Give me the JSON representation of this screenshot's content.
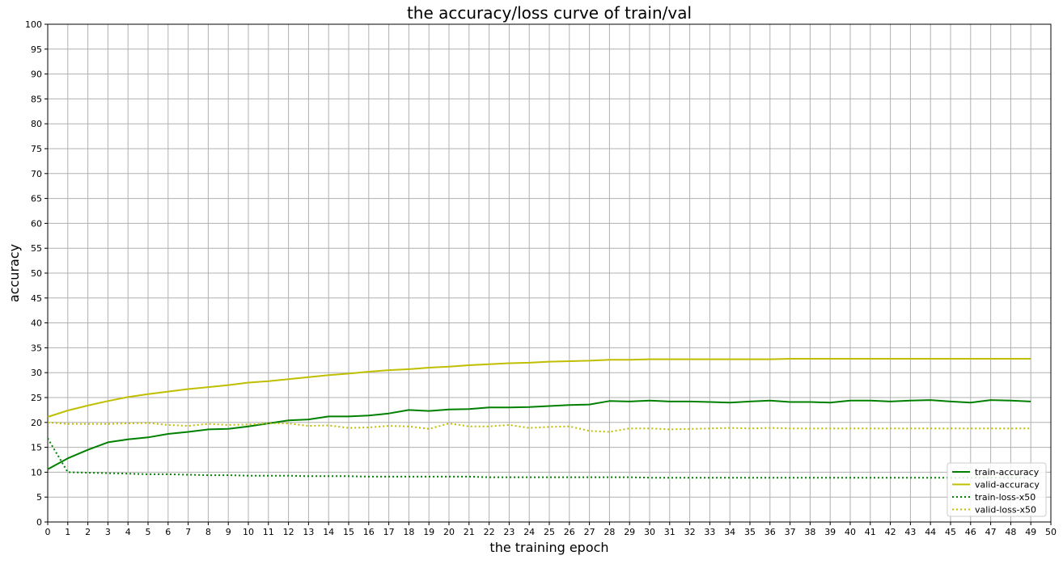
{
  "chart_data": {
    "type": "line",
    "title": "the accuracy/loss curve of train/val",
    "xlabel": "the training epoch",
    "ylabel": "accuracy",
    "xlim": [
      0,
      50
    ],
    "ylim": [
      0,
      100
    ],
    "xticks": [
      0,
      1,
      2,
      3,
      4,
      5,
      6,
      7,
      8,
      9,
      10,
      11,
      12,
      13,
      14,
      15,
      16,
      17,
      18,
      19,
      20,
      21,
      22,
      23,
      24,
      25,
      26,
      27,
      28,
      29,
      30,
      31,
      32,
      33,
      34,
      35,
      36,
      37,
      38,
      39,
      40,
      41,
      42,
      43,
      44,
      45,
      46,
      47,
      48,
      49,
      50
    ],
    "yticks": [
      0,
      5,
      10,
      15,
      20,
      25,
      30,
      35,
      40,
      45,
      50,
      55,
      60,
      65,
      70,
      75,
      80,
      85,
      90,
      95,
      100
    ],
    "grid": true,
    "legend_position": "bottom-right",
    "x": [
      0,
      1,
      2,
      3,
      4,
      5,
      6,
      7,
      8,
      9,
      10,
      11,
      12,
      13,
      14,
      15,
      16,
      17,
      18,
      19,
      20,
      21,
      22,
      23,
      24,
      25,
      26,
      27,
      28,
      29,
      30,
      31,
      32,
      33,
      34,
      35,
      36,
      37,
      38,
      39,
      40,
      41,
      42,
      43,
      44,
      45,
      46,
      47,
      48,
      49
    ],
    "series": [
      {
        "name": "train-accuracy",
        "color": "#008000",
        "style": "solid",
        "values": [
          10.6,
          12.8,
          14.5,
          16.0,
          16.6,
          17.0,
          17.7,
          18.1,
          18.6,
          18.7,
          19.2,
          19.8,
          20.4,
          20.6,
          21.2,
          21.2,
          21.4,
          21.8,
          22.5,
          22.3,
          22.6,
          22.7,
          23.0,
          23.0,
          23.1,
          23.3,
          23.5,
          23.6,
          24.3,
          24.2,
          24.4,
          24.2,
          24.2,
          24.1,
          24.0,
          24.2,
          24.4,
          24.1,
          24.1,
          24.0,
          24.4,
          24.4,
          24.2,
          24.4,
          24.5,
          24.2,
          24.0,
          24.5,
          24.4,
          24.2
        ]
      },
      {
        "name": "valid-accuracy",
        "color": "#bfbf00",
        "style": "solid",
        "values": [
          21.1,
          22.4,
          23.4,
          24.3,
          25.1,
          25.7,
          26.2,
          26.7,
          27.1,
          27.5,
          28.0,
          28.3,
          28.7,
          29.1,
          29.5,
          29.8,
          30.2,
          30.5,
          30.7,
          31.0,
          31.2,
          31.5,
          31.7,
          31.9,
          32.0,
          32.2,
          32.3,
          32.4,
          32.6,
          32.6,
          32.7,
          32.7,
          32.7,
          32.7,
          32.7,
          32.7,
          32.7,
          32.8,
          32.8,
          32.8,
          32.8,
          32.8,
          32.8,
          32.8,
          32.8,
          32.8,
          32.8,
          32.8,
          32.8,
          32.8
        ]
      },
      {
        "name": "train-loss-x50",
        "color": "#008000",
        "style": "dotted",
        "values": [
          16.8,
          10.0,
          9.9,
          9.8,
          9.7,
          9.6,
          9.6,
          9.5,
          9.4,
          9.4,
          9.3,
          9.3,
          9.3,
          9.2,
          9.2,
          9.2,
          9.1,
          9.1,
          9.1,
          9.1,
          9.1,
          9.1,
          9.0,
          9.0,
          9.0,
          9.0,
          9.0,
          9.0,
          9.0,
          9.0,
          8.9,
          8.9,
          8.9,
          8.9,
          8.9,
          8.9,
          8.9,
          8.9,
          8.9,
          8.9,
          8.9,
          8.9,
          8.9,
          8.9,
          8.9,
          8.9,
          8.9,
          8.9,
          8.9,
          8.9
        ]
      },
      {
        "name": "valid-loss-x50",
        "color": "#bfbf00",
        "style": "dotted",
        "values": [
          20.0,
          19.7,
          19.7,
          19.7,
          19.8,
          19.9,
          19.5,
          19.3,
          19.7,
          19.5,
          19.6,
          19.8,
          19.8,
          19.3,
          19.4,
          18.9,
          19.0,
          19.3,
          19.2,
          18.7,
          19.8,
          19.2,
          19.2,
          19.5,
          18.9,
          19.1,
          19.2,
          18.3,
          18.1,
          18.8,
          18.8,
          18.6,
          18.7,
          18.8,
          18.9,
          18.8,
          18.9,
          18.8,
          18.8,
          18.8,
          18.8,
          18.8,
          18.8,
          18.8,
          18.8,
          18.8,
          18.8,
          18.8,
          18.8,
          18.8
        ]
      }
    ]
  }
}
